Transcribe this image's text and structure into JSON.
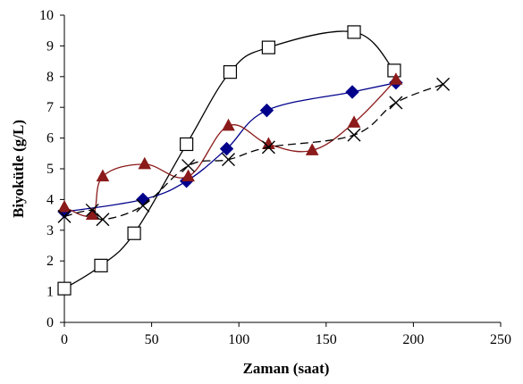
{
  "chart_data": {
    "type": "line",
    "title": "",
    "xlabel": "Zaman (saat)",
    "ylabel": "Biyokütle (g/L)",
    "xlim": [
      0,
      250
    ],
    "ylim": [
      0,
      10
    ],
    "x_ticks": [
      0,
      50,
      100,
      150,
      200,
      250
    ],
    "y_ticks": [
      0,
      1,
      2,
      3,
      4,
      5,
      6,
      7,
      8,
      9,
      10
    ],
    "grid": false,
    "legend": "none",
    "series": [
      {
        "marker": "square-open",
        "color": "#000000",
        "dash": "solid",
        "x": [
          0,
          21,
          40,
          70,
          95,
          117,
          166,
          189
        ],
        "y": [
          1.1,
          1.85,
          2.9,
          5.8,
          8.15,
          8.95,
          9.45,
          8.2
        ]
      },
      {
        "marker": "diamond-filled",
        "color": "#00008b",
        "dash": "solid",
        "x": [
          0,
          45,
          70,
          93,
          116,
          165,
          190
        ],
        "y": [
          3.6,
          4.0,
          4.6,
          5.65,
          6.9,
          7.5,
          7.8
        ]
      },
      {
        "marker": "triangle-filled",
        "color": "#8b1a1a",
        "dash": "solid",
        "x": [
          0,
          16,
          22,
          46,
          71,
          94,
          117,
          142,
          166,
          190
        ],
        "y": [
          3.75,
          3.5,
          4.75,
          5.15,
          4.75,
          6.4,
          5.8,
          5.6,
          6.5,
          7.9
        ]
      },
      {
        "marker": "x",
        "color": "#000000",
        "dash": "dash",
        "x": [
          0,
          16,
          22,
          45,
          71,
          94,
          117,
          166,
          190,
          217
        ],
        "y": [
          3.45,
          3.65,
          3.35,
          3.8,
          5.1,
          5.3,
          5.7,
          6.1,
          7.15,
          7.75
        ]
      }
    ]
  }
}
